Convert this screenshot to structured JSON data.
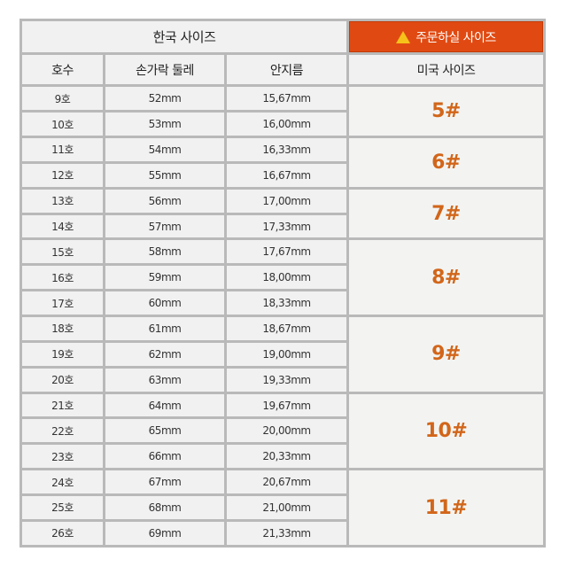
{
  "header": {
    "korean_size": "한국 사이즈",
    "order_size": "주문하실 사이즈",
    "warning_icon": "warning-triangle-icon",
    "col_number": "호수",
    "col_circumference": "손가락 둘레",
    "col_inner_diameter": "안지름",
    "col_us_size": "미국 사이즈"
  },
  "colors": {
    "accent": "#e04a12",
    "us_size_text": "#d2661a"
  },
  "rows": [
    {
      "no": "9호",
      "circ": "52mm",
      "diam": "15,67mm"
    },
    {
      "no": "10호",
      "circ": "53mm",
      "diam": "16,00mm"
    },
    {
      "no": "11호",
      "circ": "54mm",
      "diam": "16,33mm"
    },
    {
      "no": "12호",
      "circ": "55mm",
      "diam": "16,67mm"
    },
    {
      "no": "13호",
      "circ": "56mm",
      "diam": "17,00mm"
    },
    {
      "no": "14호",
      "circ": "57mm",
      "diam": "17,33mm"
    },
    {
      "no": "15호",
      "circ": "58mm",
      "diam": "17,67mm"
    },
    {
      "no": "16호",
      "circ": "59mm",
      "diam": "18,00mm"
    },
    {
      "no": "17호",
      "circ": "60mm",
      "diam": "18,33mm"
    },
    {
      "no": "18호",
      "circ": "61mm",
      "diam": "18,67mm"
    },
    {
      "no": "19호",
      "circ": "62mm",
      "diam": "19,00mm"
    },
    {
      "no": "20호",
      "circ": "63mm",
      "diam": "19,33mm"
    },
    {
      "no": "21호",
      "circ": "64mm",
      "diam": "19,67mm"
    },
    {
      "no": "22호",
      "circ": "65mm",
      "diam": "20,00mm"
    },
    {
      "no": "23호",
      "circ": "66mm",
      "diam": "20,33mm"
    },
    {
      "no": "24호",
      "circ": "67mm",
      "diam": "20,67mm"
    },
    {
      "no": "25호",
      "circ": "68mm",
      "diam": "21,00mm"
    },
    {
      "no": "26호",
      "circ": "69mm",
      "diam": "21,33mm"
    }
  ],
  "us_sizes": [
    {
      "label": "5#",
      "span": 2
    },
    {
      "label": "6#",
      "span": 2
    },
    {
      "label": "7#",
      "span": 2
    },
    {
      "label": "8#",
      "span": 3
    },
    {
      "label": "9#",
      "span": 3
    },
    {
      "label": "10#",
      "span": 3
    },
    {
      "label": "11#",
      "span": 3
    }
  ]
}
